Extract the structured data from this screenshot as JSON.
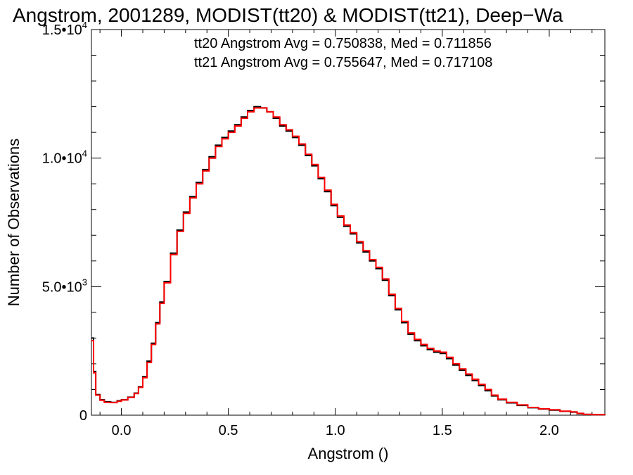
{
  "chart_data": {
    "type": "line",
    "title": "Angstrom, 2001289, MODIST(tt20) & MODIST(tt21), Deep−Wa",
    "xlabel": "Angstrom ()",
    "ylabel": "Number of Observations",
    "xlim": [
      -0.14,
      2.26
    ],
    "ylim": [
      0,
      15000
    ],
    "grid": false,
    "x_ticks": [
      {
        "value": 0.0,
        "label": "0.0"
      },
      {
        "value": 0.5,
        "label": "0.5"
      },
      {
        "value": 1.0,
        "label": "1.0"
      },
      {
        "value": 1.5,
        "label": "1.5"
      },
      {
        "value": 2.0,
        "label": "2.0"
      }
    ],
    "y_ticks": [
      {
        "value": 0,
        "mantissa": "0",
        "exponent": ""
      },
      {
        "value": 5000,
        "mantissa": "5.0•10",
        "exponent": "3"
      },
      {
        "value": 10000,
        "mantissa": "1.0•10",
        "exponent": "4"
      },
      {
        "value": 15000,
        "mantissa": "1.5•10",
        "exponent": "4"
      }
    ],
    "annotations": [
      {
        "text": "tt20 Angstrom Avg = 0.750838, Med = 0.711856",
        "color": "#000000"
      },
      {
        "text": "tt21 Angstrom Avg = 0.755647, Med = 0.717108",
        "color": "#ff0000"
      }
    ],
    "series": [
      {
        "color": "#000000",
        "points": [
          [
            -0.14,
            3000
          ],
          [
            -0.13,
            1700
          ],
          [
            -0.12,
            800
          ],
          [
            -0.1,
            600
          ],
          [
            -0.08,
            520
          ],
          [
            -0.05,
            500
          ],
          [
            -0.02,
            560
          ],
          [
            0.0,
            600
          ],
          [
            0.03,
            700
          ],
          [
            0.06,
            860
          ],
          [
            0.08,
            1100
          ],
          [
            0.1,
            1500
          ],
          [
            0.12,
            2100
          ],
          [
            0.14,
            2800
          ],
          [
            0.16,
            3600
          ],
          [
            0.18,
            4400
          ],
          [
            0.2,
            5200
          ],
          [
            0.23,
            6300
          ],
          [
            0.26,
            7200
          ],
          [
            0.29,
            7900
          ],
          [
            0.32,
            8500
          ],
          [
            0.35,
            9050
          ],
          [
            0.38,
            9550
          ],
          [
            0.41,
            10050
          ],
          [
            0.44,
            10500
          ],
          [
            0.47,
            10800
          ],
          [
            0.5,
            11050
          ],
          [
            0.53,
            11300
          ],
          [
            0.56,
            11600
          ],
          [
            0.59,
            11850
          ],
          [
            0.62,
            12000
          ],
          [
            0.65,
            11950
          ],
          [
            0.68,
            11800
          ],
          [
            0.71,
            11550
          ],
          [
            0.74,
            11250
          ],
          [
            0.77,
            11050
          ],
          [
            0.8,
            10800
          ],
          [
            0.83,
            10500
          ],
          [
            0.86,
            10100
          ],
          [
            0.89,
            9700
          ],
          [
            0.92,
            9200
          ],
          [
            0.95,
            8700
          ],
          [
            0.98,
            8150
          ],
          [
            1.01,
            7700
          ],
          [
            1.04,
            7350
          ],
          [
            1.07,
            7050
          ],
          [
            1.1,
            6700
          ],
          [
            1.13,
            6350
          ],
          [
            1.16,
            6000
          ],
          [
            1.19,
            5700
          ],
          [
            1.22,
            5250
          ],
          [
            1.25,
            4650
          ],
          [
            1.28,
            4100
          ],
          [
            1.31,
            3600
          ],
          [
            1.34,
            3150
          ],
          [
            1.37,
            2900
          ],
          [
            1.4,
            2700
          ],
          [
            1.43,
            2550
          ],
          [
            1.46,
            2450
          ],
          [
            1.49,
            2400
          ],
          [
            1.52,
            2200
          ],
          [
            1.55,
            1950
          ],
          [
            1.58,
            1750
          ],
          [
            1.61,
            1550
          ],
          [
            1.64,
            1350
          ],
          [
            1.67,
            1150
          ],
          [
            1.7,
            950
          ],
          [
            1.73,
            750
          ],
          [
            1.76,
            600
          ],
          [
            1.8,
            480
          ],
          [
            1.85,
            380
          ],
          [
            1.9,
            290
          ],
          [
            1.95,
            240
          ],
          [
            2.0,
            200
          ],
          [
            2.05,
            150
          ],
          [
            2.1,
            120
          ],
          [
            2.13,
            60
          ],
          [
            2.16,
            30
          ],
          [
            2.2,
            20
          ],
          [
            2.26,
            10
          ]
        ]
      },
      {
        "color": "#ff0000",
        "points": [
          [
            -0.14,
            2900
          ],
          [
            -0.13,
            1650
          ],
          [
            -0.12,
            780
          ],
          [
            -0.1,
            580
          ],
          [
            -0.08,
            500
          ],
          [
            -0.05,
            490
          ],
          [
            -0.02,
            540
          ],
          [
            0.0,
            590
          ],
          [
            0.03,
            690
          ],
          [
            0.06,
            840
          ],
          [
            0.08,
            1080
          ],
          [
            0.1,
            1460
          ],
          [
            0.12,
            2050
          ],
          [
            0.14,
            2750
          ],
          [
            0.16,
            3550
          ],
          [
            0.18,
            4350
          ],
          [
            0.2,
            5150
          ],
          [
            0.23,
            6250
          ],
          [
            0.26,
            7150
          ],
          [
            0.29,
            7850
          ],
          [
            0.32,
            8450
          ],
          [
            0.35,
            9000
          ],
          [
            0.38,
            9500
          ],
          [
            0.41,
            10000
          ],
          [
            0.44,
            10450
          ],
          [
            0.47,
            10750
          ],
          [
            0.5,
            11000
          ],
          [
            0.53,
            11250
          ],
          [
            0.56,
            11550
          ],
          [
            0.59,
            11800
          ],
          [
            0.62,
            11950
          ],
          [
            0.65,
            11950
          ],
          [
            0.68,
            11800
          ],
          [
            0.71,
            11600
          ],
          [
            0.74,
            11300
          ],
          [
            0.77,
            11100
          ],
          [
            0.8,
            10850
          ],
          [
            0.83,
            10550
          ],
          [
            0.86,
            10150
          ],
          [
            0.89,
            9750
          ],
          [
            0.92,
            9250
          ],
          [
            0.95,
            8750
          ],
          [
            0.98,
            8200
          ],
          [
            1.01,
            7750
          ],
          [
            1.04,
            7400
          ],
          [
            1.07,
            7100
          ],
          [
            1.1,
            6750
          ],
          [
            1.13,
            6400
          ],
          [
            1.16,
            6050
          ],
          [
            1.19,
            5750
          ],
          [
            1.22,
            5300
          ],
          [
            1.25,
            4700
          ],
          [
            1.28,
            4150
          ],
          [
            1.31,
            3650
          ],
          [
            1.34,
            3200
          ],
          [
            1.37,
            2950
          ],
          [
            1.4,
            2750
          ],
          [
            1.43,
            2600
          ],
          [
            1.46,
            2500
          ],
          [
            1.49,
            2450
          ],
          [
            1.52,
            2250
          ],
          [
            1.55,
            2000
          ],
          [
            1.58,
            1800
          ],
          [
            1.61,
            1600
          ],
          [
            1.64,
            1400
          ],
          [
            1.67,
            1200
          ],
          [
            1.7,
            1000
          ],
          [
            1.73,
            780
          ],
          [
            1.76,
            620
          ],
          [
            1.8,
            500
          ],
          [
            1.85,
            400
          ],
          [
            1.9,
            300
          ],
          [
            1.95,
            250
          ],
          [
            2.0,
            210
          ],
          [
            2.05,
            160
          ],
          [
            2.1,
            130
          ],
          [
            2.13,
            70
          ],
          [
            2.16,
            30
          ],
          [
            2.2,
            20
          ],
          [
            2.26,
            10
          ]
        ]
      }
    ]
  }
}
